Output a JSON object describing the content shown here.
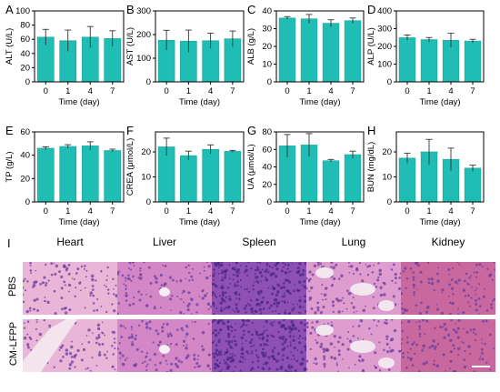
{
  "colors": {
    "bar_fill": "#1fbdb4",
    "bar_stroke": "#16a39a",
    "error_bar": "#333333",
    "axis": "#000000"
  },
  "chart_data": [
    {
      "panel": "A",
      "type": "bar",
      "categories": [
        "0",
        "1",
        "4",
        "7"
      ],
      "values": [
        63,
        58,
        63,
        61
      ],
      "errors": [
        11,
        15,
        15,
        11
      ],
      "xlabel": "Time (day)",
      "ylabel": "ALT (U/L)",
      "ylim": [
        0,
        100
      ],
      "yticks": [
        0,
        20,
        40,
        60,
        80,
        100
      ]
    },
    {
      "panel": "B",
      "type": "bar",
      "categories": [
        "0",
        "1",
        "4",
        "7"
      ],
      "values": [
        176,
        172,
        174,
        182
      ],
      "errors": [
        42,
        47,
        32,
        33
      ],
      "xlabel": "Time (day)",
      "ylabel": "AST (U/L)",
      "ylim": [
        0,
        300
      ],
      "yticks": [
        0,
        100,
        200,
        300
      ]
    },
    {
      "panel": "C",
      "type": "bar",
      "categories": [
        "0",
        "1",
        "4",
        "7"
      ],
      "values": [
        36,
        35.5,
        33,
        34.5
      ],
      "errors": [
        0.8,
        2.5,
        2,
        1.5
      ],
      "xlabel": "Time (day)",
      "ylabel": "ALB (g/L)",
      "ylim": [
        0,
        40
      ],
      "yticks": [
        0,
        10,
        20,
        30,
        40
      ]
    },
    {
      "panel": "D",
      "type": "bar",
      "categories": [
        "0",
        "1",
        "4",
        "7"
      ],
      "values": [
        249,
        238,
        234,
        230
      ],
      "errors": [
        15,
        12,
        40,
        10
      ],
      "xlabel": "Time (day)",
      "ylabel": "ALP (U/L)",
      "ylim": [
        0,
        400
      ],
      "yticks": [
        0,
        100,
        200,
        300,
        400
      ]
    },
    {
      "panel": "E",
      "type": "bar",
      "categories": [
        "0",
        "1",
        "4",
        "7"
      ],
      "values": [
        46,
        47.5,
        48,
        44
      ],
      "errors": [
        1.2,
        1.5,
        3.5,
        1.2
      ],
      "xlabel": "Time (day)",
      "ylabel": "TP (g/L)",
      "ylim": [
        0,
        60
      ],
      "yticks": [
        0,
        20,
        40,
        60
      ]
    },
    {
      "panel": "F",
      "type": "bar",
      "categories": [
        "0",
        "1",
        "4",
        "7"
      ],
      "values": [
        22,
        18.5,
        21,
        20.2
      ],
      "errors": [
        3.5,
        1.8,
        1.8,
        0.4
      ],
      "xlabel": "Time (day)",
      "ylabel": "CREA (μmol/L)",
      "ylim": [
        0,
        28
      ],
      "yticks": [
        0,
        10,
        20
      ]
    },
    {
      "panel": "G",
      "type": "bar",
      "categories": [
        "0",
        "1",
        "4",
        "7"
      ],
      "values": [
        64,
        65,
        47,
        54
      ],
      "errors": [
        13,
        13,
        1.5,
        4
      ],
      "xlabel": "Time (day)",
      "ylabel": "UA (μmol/L)",
      "ylim": [
        0,
        80
      ],
      "yticks": [
        0,
        20,
        40,
        60,
        80
      ]
    },
    {
      "panel": "H",
      "type": "bar",
      "categories": [
        "0",
        "1",
        "4",
        "7"
      ],
      "values": [
        17.5,
        20,
        17,
        13.5
      ],
      "errors": [
        2,
        5,
        4.5,
        1.2
      ],
      "xlabel": "Time (day)",
      "ylabel": "BUN (mg/dL)",
      "ylim": [
        0,
        28
      ],
      "yticks": [
        0,
        10,
        20
      ]
    }
  ],
  "histology": {
    "panel_letter": "I",
    "columns": [
      "Heart",
      "Liver",
      "Spleen",
      "Lung",
      "Kidney"
    ],
    "rows": [
      "PBS",
      "CM-LFPP"
    ],
    "tile_colors": {
      "Heart": "#e9b6d8",
      "Liver": "#d487c6",
      "Spleen": "#8f50b4",
      "Lung": "#de9ccf",
      "Kidney": "#c9689e"
    }
  }
}
